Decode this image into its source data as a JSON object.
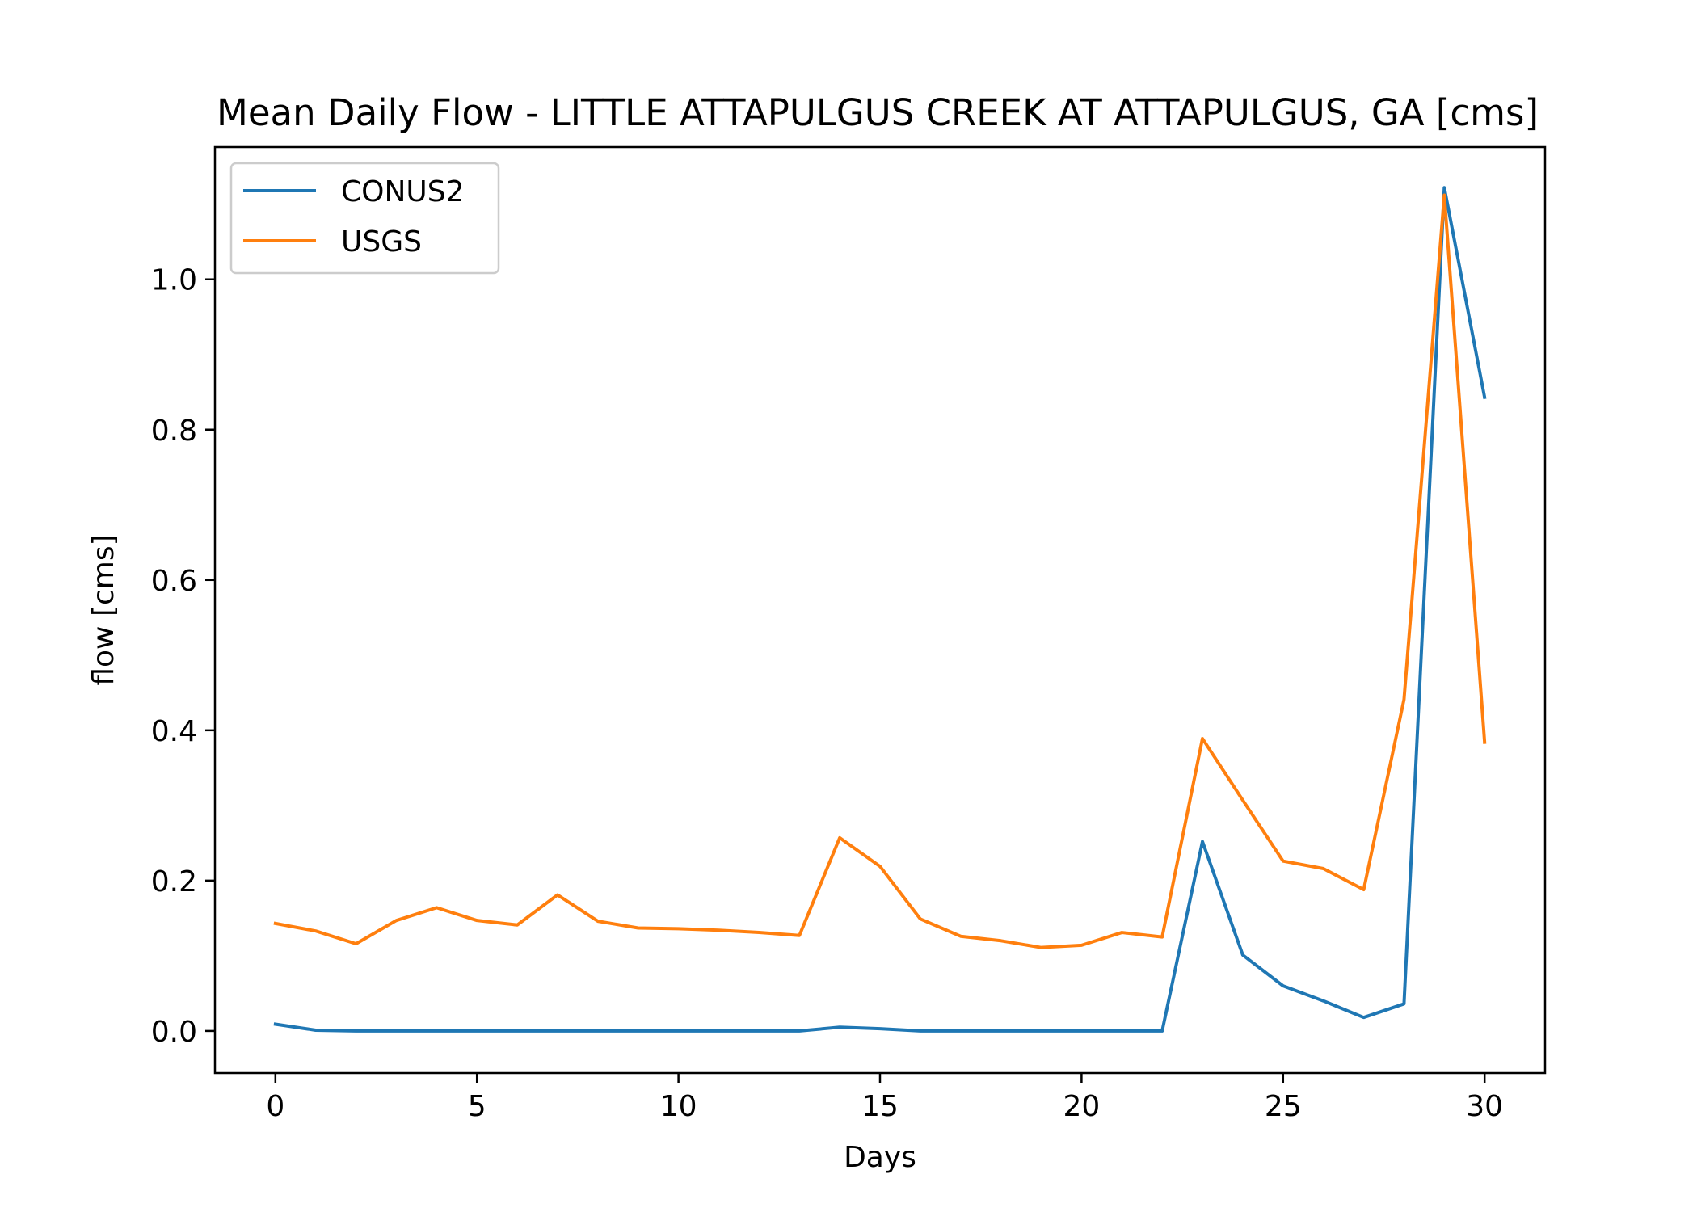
{
  "chart_data": {
    "type": "line",
    "title": "Mean Daily Flow - LITTLE ATTAPULGUS CREEK AT ATTAPULGUS, GA [cms]",
    "xlabel": "Days",
    "ylabel": "flow [cms]",
    "xlim": [
      -1.5,
      31.5
    ],
    "ylim": [
      -0.056,
      1.176
    ],
    "xticks": [
      0,
      5,
      10,
      15,
      20,
      25,
      30
    ],
    "xtick_labels": [
      "0",
      "5",
      "10",
      "15",
      "20",
      "25",
      "30"
    ],
    "yticks": [
      0.0,
      0.2,
      0.4,
      0.6,
      0.8,
      1.0
    ],
    "ytick_labels": [
      "0.0",
      "0.2",
      "0.4",
      "0.6",
      "0.8",
      "1.0"
    ],
    "grid": false,
    "legend_position": "upper-left",
    "x": [
      0,
      1,
      2,
      3,
      4,
      5,
      6,
      7,
      8,
      9,
      10,
      11,
      12,
      13,
      14,
      15,
      16,
      17,
      18,
      19,
      20,
      21,
      22,
      23,
      24,
      25,
      26,
      27,
      28,
      29,
      30
    ],
    "series": [
      {
        "name": "CONUS2",
        "color": "#1f77b4",
        "values": [
          0.009,
          0.001,
          0.0,
          0.0,
          0.0,
          0.0,
          0.0,
          0.0,
          0.0,
          0.0,
          0.0,
          0.0,
          0.0,
          0.0,
          0.005,
          0.003,
          0.0,
          0.0,
          0.0,
          0.0,
          0.0,
          0.0,
          0.0,
          0.252,
          0.101,
          0.06,
          0.04,
          0.018,
          0.036,
          1.122,
          0.843
        ]
      },
      {
        "name": "USGS",
        "color": "#ff7f0e",
        "values": [
          0.143,
          0.133,
          0.116,
          0.147,
          0.164,
          0.147,
          0.141,
          0.181,
          0.146,
          0.137,
          0.136,
          0.134,
          0.131,
          0.127,
          0.257,
          0.219,
          0.149,
          0.126,
          0.12,
          0.111,
          0.114,
          0.131,
          0.125,
          0.389,
          0.307,
          0.226,
          0.216,
          0.188,
          0.441,
          1.112,
          0.384
        ]
      }
    ]
  }
}
